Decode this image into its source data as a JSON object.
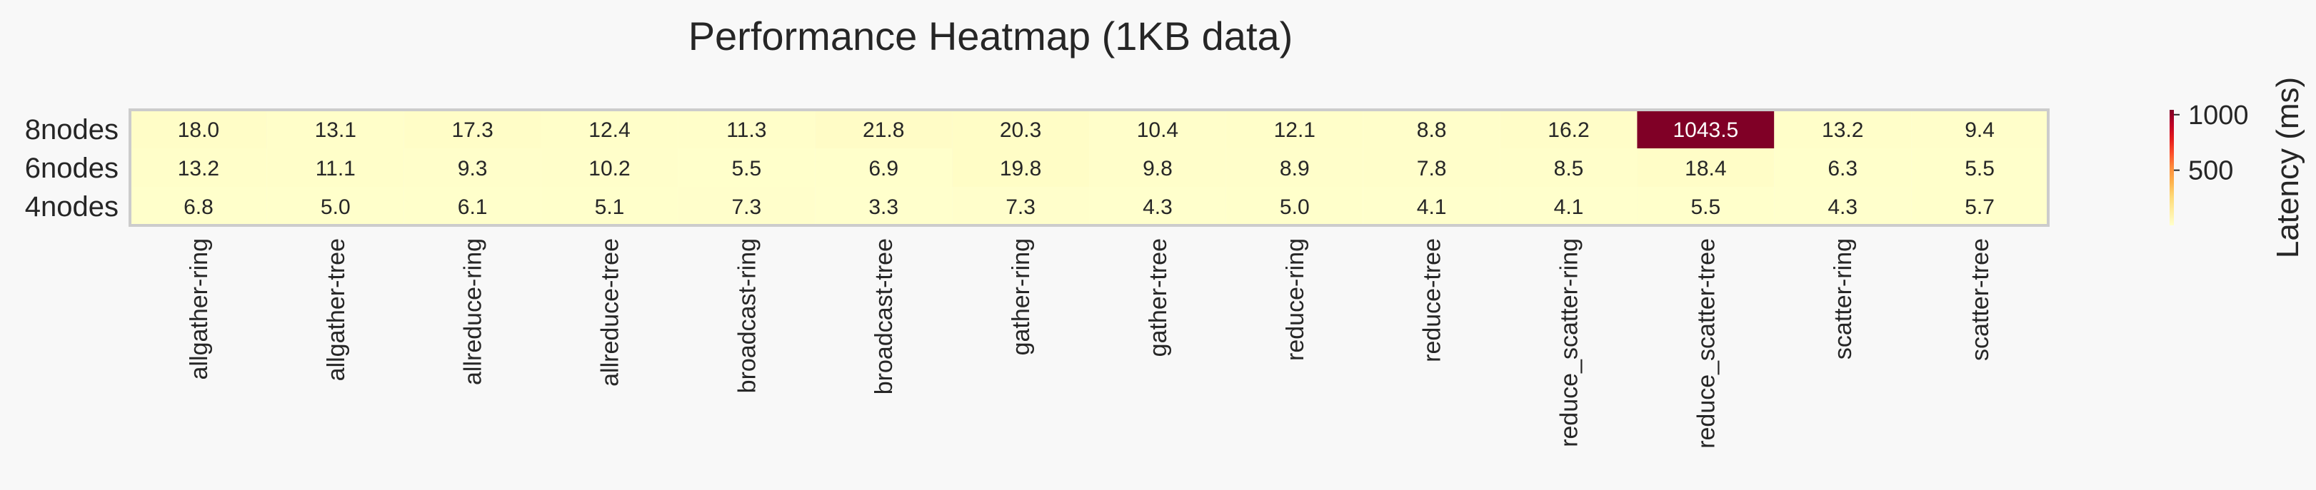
{
  "chart_data": {
    "type": "heatmap",
    "title": "Performance Heatmap (1KB data)",
    "rows": [
      "8nodes",
      "6nodes",
      "4nodes"
    ],
    "columns": [
      "allgather-ring",
      "allgather-tree",
      "allreduce-ring",
      "allreduce-tree",
      "broadcast-ring",
      "broadcast-tree",
      "gather-ring",
      "gather-tree",
      "reduce-ring",
      "reduce-tree",
      "reduce_scatter-ring",
      "reduce_scatter-tree",
      "scatter-ring",
      "scatter-tree"
    ],
    "values": [
      [
        18.0,
        13.1,
        17.3,
        12.4,
        11.3,
        21.8,
        20.3,
        10.4,
        12.1,
        8.8,
        16.2,
        1043.5,
        13.2,
        9.4
      ],
      [
        13.2,
        11.1,
        9.3,
        10.2,
        5.5,
        6.9,
        19.8,
        9.8,
        8.9,
        7.8,
        8.5,
        18.4,
        6.3,
        5.5
      ],
      [
        6.8,
        5.0,
        6.1,
        5.1,
        7.3,
        3.3,
        7.3,
        4.3,
        5.0,
        4.1,
        4.1,
        5.5,
        4.3,
        5.7
      ]
    ],
    "colormap": "YlOrRd",
    "vmin": 3.3,
    "vmax": 1043.5,
    "colorbar": {
      "label": "Latency (ms)",
      "ticks": [
        500,
        1000
      ],
      "tick_labels": [
        "500",
        "1000"
      ]
    }
  }
}
